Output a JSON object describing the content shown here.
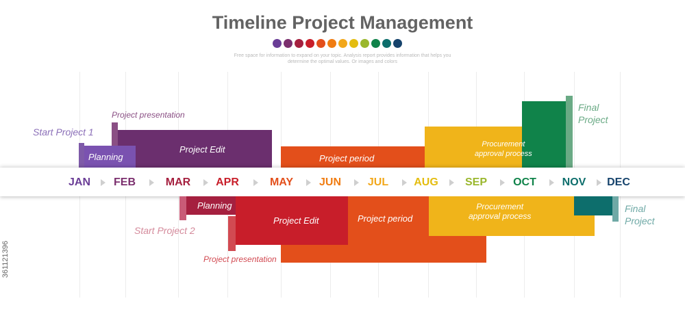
{
  "title": "Timeline Project Management",
  "subtitle": "Free space for information to expand on your topic. Analysis report provides information that helps you determine the optimal values. Or images and colors",
  "dot_colors": [
    "#6a3d96",
    "#7b2f6e",
    "#a5203f",
    "#c81e2a",
    "#e34f1b",
    "#f07c11",
    "#f2a71a",
    "#e4bd10",
    "#9ab72d",
    "#10834a",
    "#0d6e6c",
    "#16436c"
  ],
  "months": [
    {
      "label": "JAN",
      "color": "#6a3d96"
    },
    {
      "label": "FEB",
      "color": "#7b2f6e"
    },
    {
      "label": "MAR",
      "color": "#a5203f"
    },
    {
      "label": "APR",
      "color": "#c81e2a"
    },
    {
      "label": "MAY",
      "color": "#e34f1b"
    },
    {
      "label": "JUN",
      "color": "#f07c11"
    },
    {
      "label": "JUL",
      "color": "#f2a71a"
    },
    {
      "label": "AUG",
      "color": "#e4bd10"
    },
    {
      "label": "SEP",
      "color": "#9ab72d"
    },
    {
      "label": "OCT",
      "color": "#10834a"
    },
    {
      "label": "NOV",
      "color": "#0d6e6c"
    },
    {
      "label": "DEC",
      "color": "#16436c"
    }
  ],
  "project1": {
    "start_label": "Start  Project 1",
    "presentation_label": "Project presentation",
    "planning_label": "Planning",
    "edit_label": "Project Edit",
    "period_label": "Project period",
    "procurement_label": "Procurement\napproval process",
    "final_label": "Final\nProject"
  },
  "project2": {
    "start_label": "Start  Project  2",
    "presentation_label": "Project presentation",
    "planning_label": "Planning",
    "edit_label": "Project Edit",
    "period_label": "Project period",
    "procurement_label": "Procurement\napproval process",
    "final_label": "Final\nProject"
  },
  "watermark": "361121396"
}
